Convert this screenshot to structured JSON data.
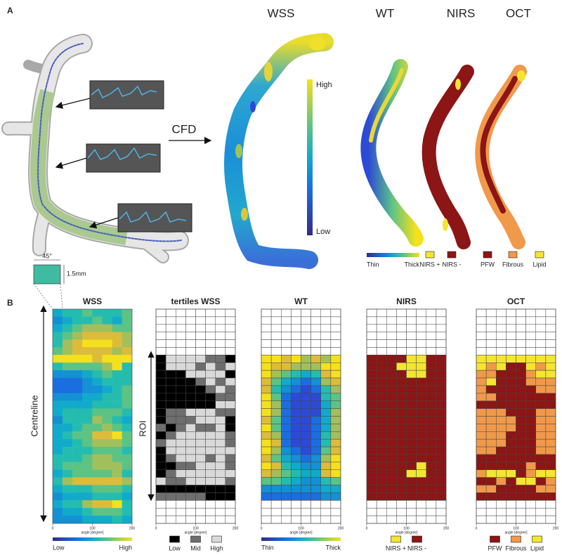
{
  "panel_a": {
    "label": "A",
    "cfd": "CFD",
    "titles": [
      "WSS",
      "WT",
      "NIRS",
      "OCT"
    ],
    "scale": {
      "high": "High",
      "low": "Low"
    },
    "wt_legend": [
      "Thin",
      "Thick"
    ],
    "nirs_legend": [
      {
        "label": "NIRS +",
        "color": "#f3e531"
      },
      {
        "label": "NIRS -",
        "color": "#8c1515"
      }
    ],
    "oct_legend": [
      {
        "label": "PFW",
        "color": "#8c1515"
      },
      {
        "label": "Fibrous",
        "color": "#f0994a"
      },
      {
        "label": "Lipid",
        "color": "#f3e531"
      }
    ],
    "cell": {
      "angle": "45°",
      "length": "1.5mm"
    }
  },
  "panel_b": {
    "label": "B",
    "centreline": "Centreline",
    "roi": "ROI",
    "x_axis": {
      "label": "angle [degree]",
      "lim": [
        0,
        200
      ],
      "ticks": [
        0,
        100,
        200
      ]
    },
    "palette": [
      "#352a87",
      "#2d4ad6",
      "#1a6ee0",
      "#1490d4",
      "#12aacb",
      "#25bcb0",
      "#5cc385",
      "#a3bf5c",
      "#dcbc3a",
      "#f5e01e"
    ],
    "maps": [
      {
        "title": "WSS",
        "kind": "continuous",
        "grid": false,
        "legend": [
          "Low",
          "High"
        ],
        "rows": [
          "45565556",
          "34556546",
          "45677766",
          "56788887",
          "57899987",
          "67888878",
          "99998999",
          "56666795",
          "33345655",
          "22234555",
          "22233456",
          "33344556",
          "44445556",
          "45556665",
          "35557654",
          "44566765",
          "45668896",
          "44567776",
          "45556665",
          "55567766",
          "56667776",
          "45666675",
          "57888887",
          "45556665",
          "34445554",
          "45578895",
          "34456665",
          "33344454"
        ]
      },
      {
        "title": "tertiles WSS",
        "kind": "categorical",
        "grid": true,
        "legend": [
          {
            "label": "Low",
            "color": "#000000"
          },
          {
            "label": "Mid",
            "color": "#6e6e6e"
          },
          {
            "label": "High",
            "color": "#d9d9d9"
          }
        ],
        "rows": [
          null,
          null,
          null,
          null,
          null,
          null,
          "02222110",
          "02221212",
          "00022220",
          "00001212",
          "00000121",
          "00000011",
          "00000022",
          "01122211",
          "01112220",
          "10121120",
          "01222221",
          "12222221",
          "02222222",
          "01222121",
          "00112221",
          "01222222",
          "21122221",
          "00000000",
          "11111000",
          null,
          null,
          null
        ]
      },
      {
        "title": "WT",
        "kind": "continuous",
        "grid": true,
        "legend": [
          "Thin",
          "Thick"
        ],
        "rows": [
          null,
          null,
          null,
          null,
          null,
          null,
          "99897879",
          "98877799",
          "97654589",
          "86432378",
          "85321257",
          "96211156",
          "97211146",
          "97211147",
          "86211247",
          "96211247",
          "87211257",
          "98211258",
          "97321268",
          "86432379",
          "98543389",
          "87654489",
          "66543356",
          "33333344",
          "22222233",
          null,
          null,
          null
        ]
      },
      {
        "title": "NIRS",
        "kind": "categorical",
        "grid": true,
        "legend": [
          {
            "label": "NIRS +",
            "color": "#f3e531"
          },
          {
            "label": "NIRS -",
            "color": "#8c1515"
          }
        ],
        "rows": [
          null,
          null,
          null,
          null,
          null,
          null,
          "11110011",
          "11100011",
          "11110011",
          "11111111",
          "11111111",
          "11111111",
          "11111111",
          "11111111",
          "11111111",
          "11111111",
          "11111111",
          "11111111",
          "11111111",
          "11111111",
          "11111011",
          "11110011",
          "11111111",
          "11111111",
          "11111111",
          null,
          null,
          null
        ]
      },
      {
        "title": "OCT",
        "kind": "categorical",
        "grid": true,
        "legend": [
          {
            "label": "PFW",
            "color": "#8c1515"
          },
          {
            "label": "Fibrous",
            "color": "#f0994a"
          },
          {
            "label": "Lipid",
            "color": "#f3e531"
          }
        ],
        "rows": [
          null,
          null,
          null,
          null,
          null,
          null,
          "22222222",
          "21200212",
          "11000122",
          "12000111",
          "10000011",
          "11000000",
          "00000000",
          "11100011",
          "11110011",
          "11110011",
          "11100011",
          "11100011",
          "11000011",
          "00000000",
          "00000100",
          "12220122",
          "00102201",
          "11000011",
          "00000000",
          null,
          null,
          null
        ]
      }
    ]
  }
}
